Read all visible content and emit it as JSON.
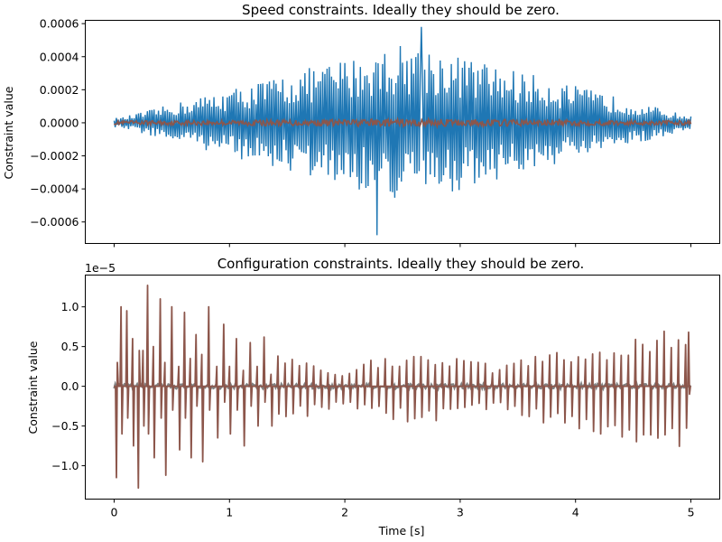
{
  "chart_data": [
    {
      "type": "line",
      "title": "Speed constraints. Ideally they should be zero.",
      "xlabel": "",
      "ylabel": "Constraint value",
      "xlim": [
        -0.25,
        5.25
      ],
      "ylim": [
        -0.00073,
        0.00062
      ],
      "x_ticks": [
        0,
        1,
        2,
        3,
        4,
        5
      ],
      "x_tick_labels": [
        "",
        "",
        "",
        "",
        "",
        ""
      ],
      "y_ticks": [
        -0.0006,
        -0.0004,
        -0.0002,
        0.0,
        0.0002,
        0.0004,
        0.0006
      ],
      "y_tick_labels": [
        "−0.0006",
        "−0.0004",
        "−0.0002",
        "0.0000",
        "0.0002",
        "0.0004",
        "0.0006"
      ],
      "grid": false,
      "legend": "none",
      "series": [
        {
          "color": "#1f77b4",
          "x_range": [
            0,
            5
          ],
          "samples": 500,
          "peak_max": 0.00058,
          "peak_min": -0.00068,
          "envelope": "diamond, max near t=2.6"
        },
        {
          "color": "#8c564b",
          "x_range": [
            0,
            5
          ],
          "samples": 500,
          "amplitude": 2e-05
        }
      ]
    },
    {
      "type": "line",
      "title": "Configuration constraints. Ideally they should be zero.",
      "xlabel": "Time [s]",
      "ylabel": "Constraint value",
      "offset_text": "1e−5",
      "xlim": [
        -0.25,
        5.25
      ],
      "ylim": [
        -1.42,
        1.4
      ],
      "y_scale_factor": 1e-05,
      "x_ticks": [
        0,
        1,
        2,
        3,
        4,
        5
      ],
      "x_tick_labels": [
        "0",
        "1",
        "2",
        "3",
        "4",
        "5"
      ],
      "y_ticks": [
        -1.0,
        -0.5,
        0.0,
        0.5,
        1.0
      ],
      "y_tick_labels": [
        "−1.0",
        "−0.5",
        "0.0",
        "0.5",
        "1.0"
      ],
      "grid": false,
      "legend": "none",
      "series": [
        {
          "color": "#7f7f7f",
          "x_range": [
            0,
            5
          ],
          "amplitude": 0.03
        },
        {
          "color": "#8c564b",
          "x_range": [
            0,
            5
          ],
          "spikes": "damped spikes near 0–1.4 s reaching ±1.27, moderate 1.4–5 s"
        }
      ]
    }
  ]
}
